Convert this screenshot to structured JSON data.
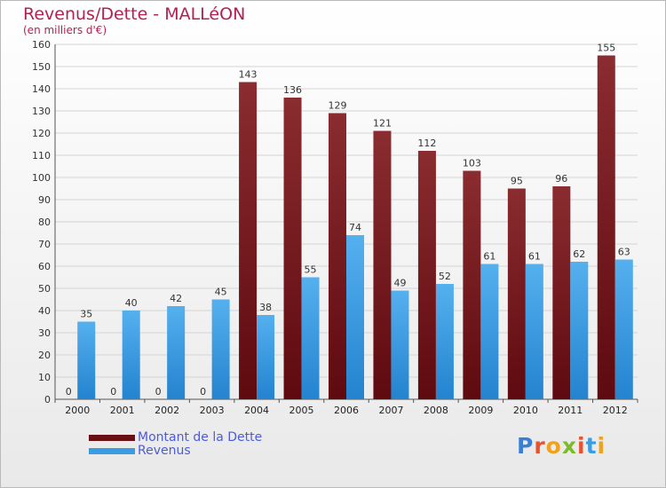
{
  "title": "Revenus/Dette - MALLéON",
  "subtitle": "(en milliers d'€)",
  "logo": "Proxiti",
  "colors": {
    "dette": "#7b1a1f",
    "revenus": "#3a9de3"
  },
  "chart_data": {
    "type": "bar",
    "categories": [
      "2000",
      "2001",
      "2002",
      "2003",
      "2004",
      "2005",
      "2006",
      "2007",
      "2008",
      "2009",
      "2010",
      "2011",
      "2012"
    ],
    "series": [
      {
        "name": "Montant de la Dette",
        "values": [
          0,
          0,
          0,
          0,
          143,
          136,
          129,
          121,
          112,
          103,
          95,
          96,
          155
        ]
      },
      {
        "name": "Revenus",
        "values": [
          35,
          40,
          42,
          45,
          38,
          55,
          74,
          49,
          52,
          61,
          61,
          62,
          63
        ]
      }
    ],
    "ylim": [
      0,
      160
    ],
    "yticks": [
      0,
      10,
      20,
      30,
      40,
      50,
      60,
      70,
      80,
      90,
      100,
      110,
      120,
      130,
      140,
      150,
      160
    ],
    "legend": "bottom-left"
  }
}
